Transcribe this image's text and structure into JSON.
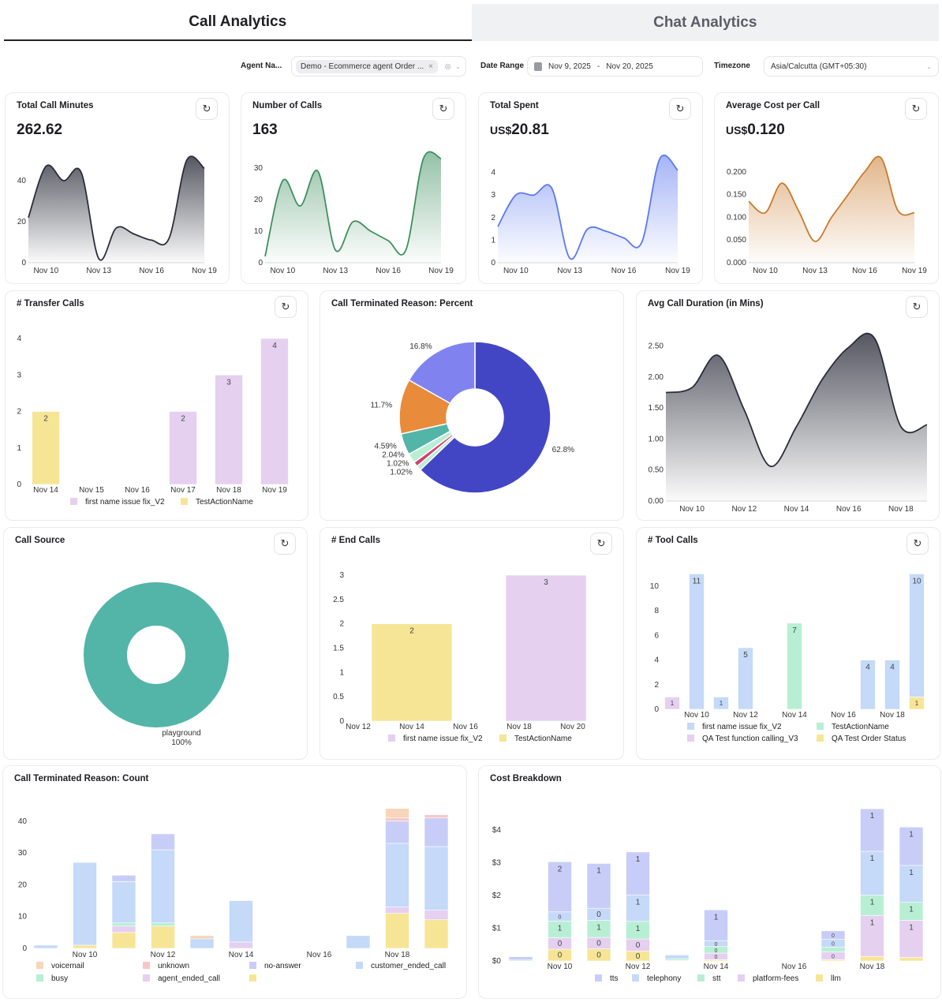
{
  "tabs": [
    {
      "label": "Call Analytics",
      "active": true
    },
    {
      "label": "Chat Analytics",
      "active": false
    }
  ],
  "filters": {
    "agent_label": "Agent Na...",
    "agent_chip": "Demo - Ecommerce agent Order ...",
    "date_label": "Date Range",
    "date_start": "Nov 9, 2025",
    "date_sep": "-",
    "date_end": "Nov 20, 2025",
    "timezone_label": "Timezone",
    "timezone_value": "Asia/Calcutta (GMT+05:30)"
  },
  "icons": {
    "refresh": "refresh-icon",
    "calendar": "calendar-icon",
    "clear": "clear-icon",
    "chevron": "chevron-down-icon"
  },
  "kpis": [
    {
      "prefix": "",
      "value": "262.62"
    },
    {
      "prefix": "",
      "value": "163"
    },
    {
      "prefix": "US$",
      "value": "20.81"
    },
    {
      "prefix": "US$",
      "value": "0.120"
    }
  ],
  "chart_data": [
    {
      "type": "area",
      "title": "Total Call Minutes",
      "color": "#2b2d3a",
      "x": [
        "Nov 9",
        "Nov 10",
        "Nov 11",
        "Nov 12",
        "Nov 13",
        "Nov 14",
        "Nov 15",
        "Nov 16",
        "Nov 17",
        "Nov 18",
        "Nov 19"
      ],
      "y": [
        22,
        47,
        40,
        44,
        2,
        17,
        14,
        11,
        12,
        50,
        46
      ],
      "xticks": [
        "Nov 10",
        "Nov 13",
        "Nov 16",
        "Nov 19"
      ],
      "yticks": [
        "0",
        "20",
        "40"
      ],
      "ylim": [
        0,
        50
      ]
    },
    {
      "type": "area",
      "title": "Number of Calls",
      "color": "#3f8f60",
      "x": [
        "Nov 9",
        "Nov 10",
        "Nov 11",
        "Nov 12",
        "Nov 13",
        "Nov 14",
        "Nov 15",
        "Nov 16",
        "Nov 17",
        "Nov 18",
        "Nov 19"
      ],
      "y": [
        2,
        26,
        18,
        29,
        4,
        13,
        10,
        7,
        4,
        33,
        33
      ],
      "xticks": [
        "Nov 10",
        "Nov 13",
        "Nov 16",
        "Nov 19"
      ],
      "yticks": [
        "0",
        "10",
        "20",
        "30"
      ],
      "ylim": [
        0,
        35
      ]
    },
    {
      "type": "area",
      "title": "Total Spent",
      "color": "#5b78f0",
      "x": [
        "Nov 9",
        "Nov 10",
        "Nov 11",
        "Nov 12",
        "Nov 13",
        "Nov 14",
        "Nov 15",
        "Nov 16",
        "Nov 17",
        "Nov 18",
        "Nov 19"
      ],
      "y": [
        1.6,
        3.0,
        3.0,
        3.3,
        0.2,
        1.5,
        1.4,
        1.1,
        0.9,
        4.6,
        4.1
      ],
      "xticks": [
        "Nov 10",
        "Nov 13",
        "Nov 16",
        "Nov 19"
      ],
      "yticks": [
        "0",
        "1",
        "2",
        "3",
        "4"
      ],
      "ylim": [
        0,
        5
      ]
    },
    {
      "type": "area",
      "title": "Average Cost per Call",
      "color": "#c97a2c",
      "x": [
        "Nov 9",
        "Nov 10",
        "Nov 11",
        "Nov 12",
        "Nov 13",
        "Nov 14",
        "Nov 15",
        "Nov 16",
        "Nov 17",
        "Nov 18",
        "Nov 19"
      ],
      "y": [
        0.135,
        0.11,
        0.175,
        0.115,
        0.047,
        0.1,
        0.15,
        0.2,
        0.23,
        0.115,
        0.11
      ],
      "xticks": [
        "Nov 10",
        "Nov 13",
        "Nov 16",
        "Nov 19"
      ],
      "yticks": [
        "0.000",
        "0.050",
        "0.100",
        "0.150",
        "0.200"
      ],
      "ylim": [
        0,
        0.25
      ]
    },
    {
      "type": "bar",
      "stacked": true,
      "title": "# Transfer Calls",
      "categories": [
        "Nov 14",
        "Nov 15",
        "Nov 16",
        "Nov 17",
        "Nov 18",
        "Nov 19"
      ],
      "xticks": [
        "Nov 14",
        "Nov 15",
        "Nov 16",
        "Nov 17",
        "Nov 18",
        "Nov 19"
      ],
      "yticks": [
        "0",
        "1",
        "2",
        "3",
        "4"
      ],
      "ylim": [
        0,
        4
      ],
      "labels": "top",
      "series": [
        {
          "name": "first name issue fix_V2",
          "color": "#e5d0f0",
          "values": [
            0,
            0,
            0,
            2,
            3,
            4
          ]
        },
        {
          "name": "TestActionName",
          "color": "#f7e596",
          "values": [
            2,
            0,
            0,
            0,
            0,
            0
          ]
        }
      ]
    },
    {
      "type": "pie",
      "title": "Call Terminated Reason: Percent",
      "slices": [
        {
          "value": 62.8,
          "label": "62.8%",
          "color": "#4346c4"
        },
        {
          "value": 1.02,
          "label": "1.02%",
          "color": "#b8efd4"
        },
        {
          "value": 1.02,
          "label": "1.02%",
          "color": "#d63f6e"
        },
        {
          "value": 2.04,
          "label": "2.04%",
          "color": "#b8efd4"
        },
        {
          "value": 4.59,
          "label": "4.59%",
          "color": "#52b5a8"
        },
        {
          "value": 11.7,
          "label": "11.7%",
          "color": "#e88b3a"
        },
        {
          "value": 16.8,
          "label": "16.8%",
          "color": "#8083ef"
        }
      ]
    },
    {
      "type": "area",
      "title": "Avg Call Duration (in Mins)",
      "color": "#2b2d3a",
      "x": [
        "Nov 9",
        "Nov 10",
        "Nov 11",
        "Nov 12",
        "Nov 13",
        "Nov 14",
        "Nov 15",
        "Nov 16",
        "Nov 17",
        "Nov 18",
        "Nov 19"
      ],
      "y": [
        1.75,
        1.83,
        2.35,
        1.47,
        0.56,
        1.2,
        1.97,
        2.48,
        2.62,
        1.2,
        1.23
      ],
      "xticks": [
        "Nov 10",
        "Nov 12",
        "Nov 14",
        "Nov 16",
        "Nov 18"
      ],
      "yticks": [
        "0.00",
        "0.50",
        "1.00",
        "1.50",
        "2.00",
        "2.50"
      ],
      "ylim": [
        0,
        2.75
      ]
    },
    {
      "type": "pie",
      "title": "Call Source",
      "slices": [
        {
          "value": 100,
          "name": "playground",
          "label": "100%",
          "color": "#52b5a8"
        }
      ]
    },
    {
      "type": "bar",
      "stacked": true,
      "title": "# End Calls",
      "categories": [
        "Nov 14",
        "Nov 19"
      ],
      "xticks": [
        "Nov 12",
        "Nov 14",
        "Nov 16",
        "Nov 18",
        "Nov 20"
      ],
      "yticks": [
        "0",
        "0.5",
        "1",
        "1.5",
        "2",
        "2.5",
        "3"
      ],
      "ylim": [
        0,
        3
      ],
      "labels": "top",
      "series": [
        {
          "name": "first name issue fix_V2",
          "color": "#e5d0f0",
          "values": [
            0,
            3
          ]
        },
        {
          "name": "TestActionName",
          "color": "#f7e596",
          "values": [
            2,
            0
          ]
        }
      ]
    },
    {
      "type": "bar",
      "stacked": true,
      "title": "# Tool Calls",
      "categories": [
        "Nov 9",
        "Nov 10",
        "Nov 11",
        "Nov 12",
        "Nov 14",
        "Nov 17",
        "Nov 18",
        "Nov 19"
      ],
      "xticks": [
        "Nov 10",
        "Nov 12",
        "Nov 14",
        "Nov 16",
        "Nov 18"
      ],
      "yticks": [
        "0",
        "2",
        "4",
        "6",
        "8",
        "10"
      ],
      "ylim": [
        0,
        11
      ],
      "labels": "top",
      "series": [
        {
          "name": "QA Test Order Status",
          "color": "#f7e596",
          "values": [
            0,
            0,
            0,
            0,
            0,
            0,
            0,
            1
          ]
        },
        {
          "name": "first name issue fix_V2",
          "color": "#c5d9f8",
          "values": [
            0,
            11,
            1,
            5,
            0,
            4,
            4,
            10
          ]
        },
        {
          "name": "TestActionName",
          "color": "#b8efd4",
          "values": [
            0,
            0,
            0,
            0,
            7,
            0,
            0,
            0
          ]
        },
        {
          "name": "QA Test function calling_V3",
          "color": "#e5d0f0",
          "values": [
            1,
            0,
            0,
            0,
            0,
            0,
            0,
            0
          ]
        }
      ],
      "legend_order": [
        "first name issue fix_V2",
        "TestActionName",
        "QA Test function calling_V3",
        "QA Test Order Status"
      ]
    },
    {
      "type": "bar",
      "stacked": true,
      "title": "Call Terminated Reason: Count",
      "categories": [
        "Nov 9",
        "Nov 10",
        "Nov 11",
        "Nov 12",
        "Nov 13",
        "Nov 14",
        "Nov 17",
        "Nov 18",
        "Nov 19"
      ],
      "xticks": [
        "Nov 10",
        "Nov 12",
        "Nov 14",
        "Nov 16",
        "Nov 18"
      ],
      "yticks": [
        "0",
        "10",
        "20",
        "30",
        "40"
      ],
      "ylim": [
        0,
        45
      ],
      "labels": "none",
      "series": [
        {
          "name": "",
          "color": "#f7e596",
          "values": [
            0,
            1,
            5,
            7,
            0,
            0,
            0,
            11,
            9
          ]
        },
        {
          "name": "agent_ended_call",
          "color": "#e5d0f0",
          "values": [
            0,
            0,
            2,
            0,
            0,
            2,
            0,
            2,
            3
          ]
        },
        {
          "name": "busy",
          "color": "#b8efd4",
          "values": [
            0,
            0,
            1,
            1,
            0,
            0,
            0,
            0,
            0
          ]
        },
        {
          "name": "customer_ended_call",
          "color": "#c5d9f8",
          "values": [
            1,
            26,
            13,
            23,
            3,
            13,
            4,
            20,
            20
          ]
        },
        {
          "name": "no-answer",
          "color": "#c8cdf8",
          "values": [
            0,
            0,
            2,
            5,
            0,
            0,
            0,
            7,
            9
          ]
        },
        {
          "name": "unknown",
          "color": "#f5c7c9",
          "values": [
            0,
            0,
            0,
            0,
            0,
            0,
            0,
            1,
            1
          ]
        },
        {
          "name": "voicemail",
          "color": "#f7d6bb",
          "values": [
            0,
            0,
            0,
            0,
            1,
            0,
            0,
            3,
            0
          ]
        }
      ],
      "legend_order": [
        "voicemail",
        "unknown",
        "no-answer",
        "customer_ended_call",
        "busy",
        "agent_ended_call",
        ""
      ]
    },
    {
      "type": "bar",
      "stacked": true,
      "title": "Cost Breakdown",
      "categories": [
        "Nov 9",
        "Nov 10",
        "Nov 11",
        "Nov 12",
        "Nov 13",
        "Nov 14",
        "Nov 17",
        "Nov 18",
        "Nov 19"
      ],
      "xticks": [
        "Nov 10",
        "Nov 12",
        "Nov 14",
        "Nov 16",
        "Nov 18"
      ],
      "yticks": [
        "$0",
        "$1",
        "$2",
        "$3",
        "$4"
      ],
      "ylim": [
        0,
        4.7
      ],
      "labels": "mid",
      "series": [
        {
          "name": "llm",
          "color": "#f7e596",
          "values": [
            0,
            0.36,
            0.37,
            0.3,
            0.02,
            0.04,
            0.04,
            0.14,
            0.11
          ]
        },
        {
          "name": "platform-fees",
          "color": "#e5d0f0",
          "values": [
            0,
            0.35,
            0.35,
            0.37,
            0,
            0.2,
            0.24,
            1.25,
            1.13
          ]
        },
        {
          "name": "stt",
          "color": "#b8efd4",
          "values": [
            0.03,
            0.51,
            0.52,
            0.54,
            0.05,
            0.2,
            0.14,
            0.62,
            0.55
          ]
        },
        {
          "name": "telephony",
          "color": "#c5d9f8",
          "values": [
            0,
            0.28,
            0.37,
            0.8,
            0.11,
            0.18,
            0.24,
            1.34,
            1.13
          ]
        },
        {
          "name": "tts",
          "color": "#c8cdf8",
          "values": [
            0.1,
            1.53,
            1.37,
            1.32,
            0.02,
            0.94,
            0.26,
            1.3,
            1.17
          ]
        }
      ],
      "legend_order": [
        "tts",
        "telephony",
        "stt",
        "platform-fees",
        "llm"
      ]
    }
  ]
}
